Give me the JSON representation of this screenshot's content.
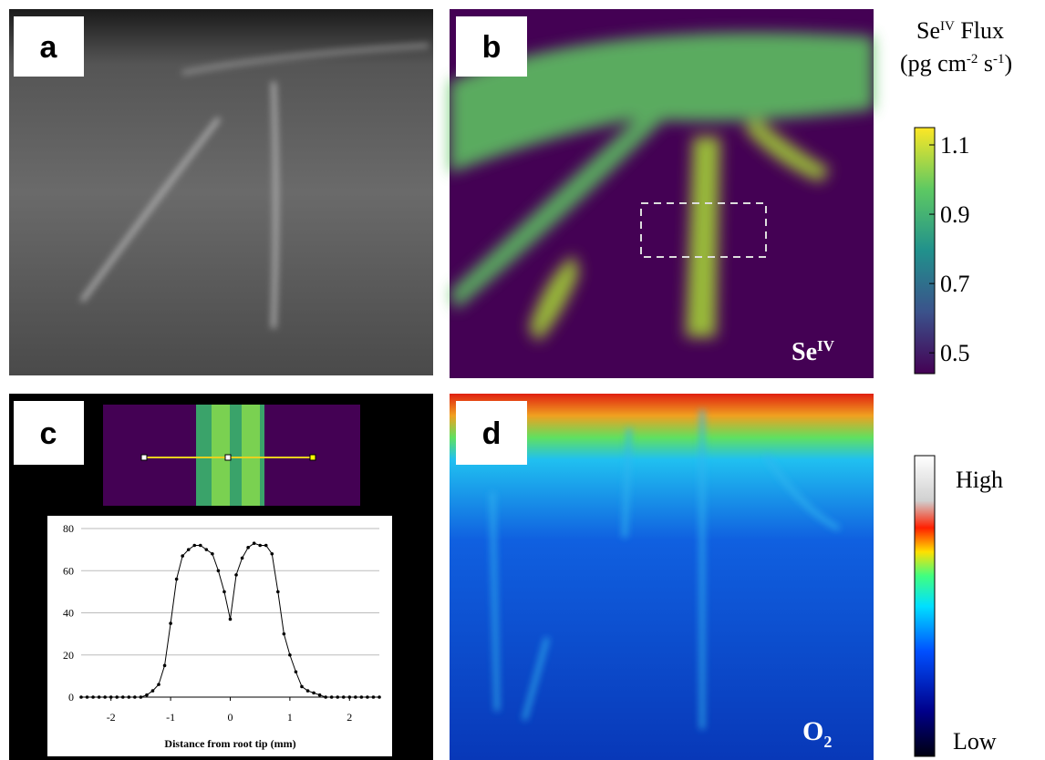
{
  "panels": {
    "a": {
      "label": "a"
    },
    "b": {
      "label": "b",
      "annotation": "Se",
      "annotation_sup": "IV"
    },
    "c": {
      "label": "c"
    },
    "d": {
      "label": "d",
      "annotation": "O",
      "annotation_sub": "2"
    }
  },
  "colorbar_b": {
    "title_1": "Se",
    "title_sup": "IV",
    "title_2": " Flux",
    "units_1": "(pg cm",
    "units_sup_1": "-2",
    "units_2": " s",
    "units_sup_2": "-1",
    "units_3": ")",
    "lim": [
      0.44,
      1.15
    ],
    "ticks": [
      1.1,
      0.9,
      0.7,
      0.5
    ]
  },
  "colorbar_d": {
    "high": "High",
    "low": "Low"
  },
  "chart_data": {
    "type": "line",
    "xlabel": "Distance from root tip (mm)",
    "color": "#000000",
    "x": [
      -2.5,
      -2.4,
      -2.3,
      -2.2,
      -2.1,
      -2.0,
      -1.9,
      -1.8,
      -1.7,
      -1.6,
      -1.5,
      -1.4,
      -1.3,
      -1.2,
      -1.1,
      -1.0,
      -0.9,
      -0.8,
      -0.7,
      -0.6,
      -0.5,
      -0.4,
      -0.3,
      -0.2,
      -0.1,
      0.0,
      0.1,
      0.2,
      0.3,
      0.4,
      0.5,
      0.6,
      0.7,
      0.8,
      0.9,
      1.0,
      1.1,
      1.2,
      1.3,
      1.4,
      1.5,
      1.6,
      1.7,
      1.8,
      1.9,
      2.0,
      2.1,
      2.2,
      2.3,
      2.4,
      2.5
    ],
    "y": [
      0,
      0,
      0,
      0,
      0,
      0,
      0,
      0,
      0,
      0,
      0,
      1,
      3,
      6,
      15,
      35,
      56,
      67,
      70,
      72,
      72,
      70,
      68,
      60,
      50,
      37,
      58,
      66,
      71,
      73,
      72,
      72,
      68,
      50,
      30,
      20,
      12,
      5,
      3,
      2,
      1,
      0,
      0,
      0,
      0,
      0,
      0,
      0,
      0,
      0,
      0
    ],
    "xlim": [
      -2.5,
      2.5
    ],
    "ylim": [
      0,
      80
    ],
    "xticks": [
      -2,
      -1,
      0,
      1,
      2
    ],
    "yticks": [
      0,
      20,
      40,
      60,
      80
    ],
    "grid": true
  }
}
